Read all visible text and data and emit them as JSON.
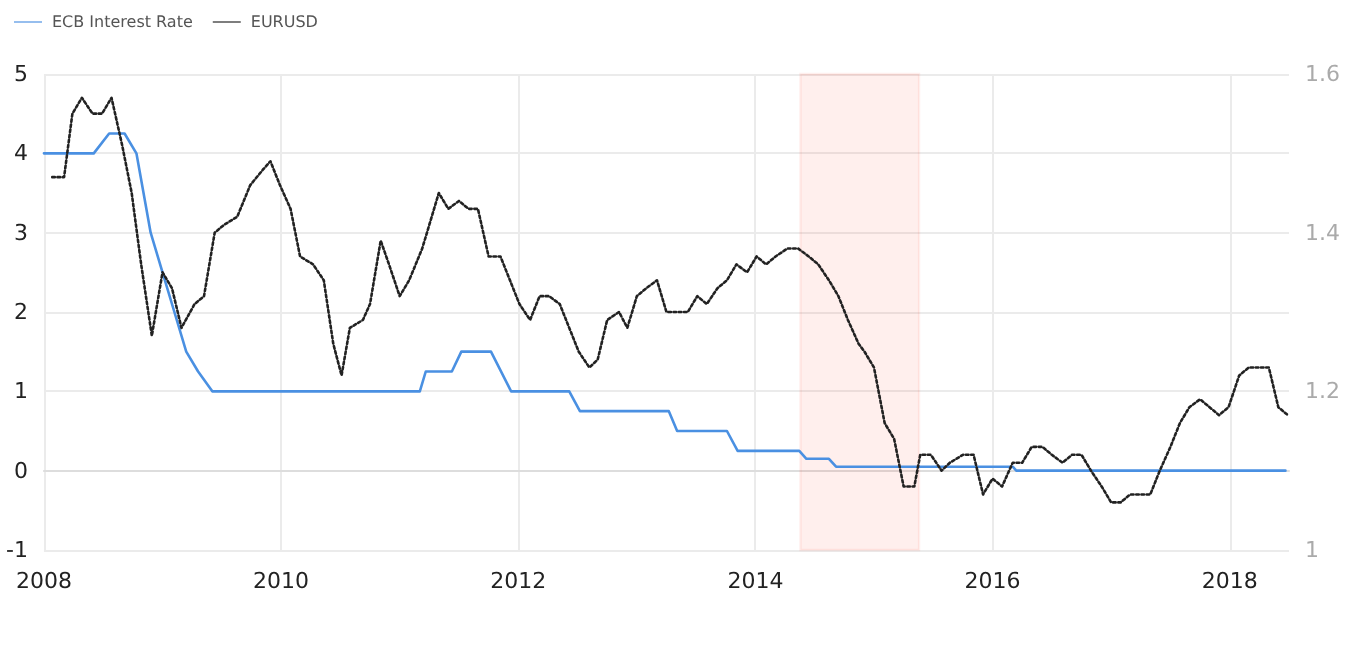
{
  "chart_data": {
    "type": "line",
    "xlim": [
      2008,
      2018.5
    ],
    "xticks": [
      2008,
      2010,
      2012,
      2014,
      2016,
      2018
    ],
    "ylim": [
      -1,
      5
    ],
    "yticks": [
      -1,
      0,
      1,
      2,
      3,
      4,
      5
    ],
    "y2lim": [
      1,
      1.6
    ],
    "y2ticks": [
      1,
      1.2,
      1.4,
      1.6
    ],
    "grid": true,
    "legend": "top left",
    "marker": "none",
    "bands": [
      {
        "axis": "x",
        "from": 2014.38,
        "to": 2015.38,
        "color": "#ff2200"
      }
    ],
    "series": [
      {
        "name": "ECB Interest Rate",
        "color": "#4a90e2",
        "line_style": "solid",
        "x": [
          2008,
          2008.42,
          2008.55,
          2008.68,
          2008.78,
          2008.9,
          2009.0,
          2009.1,
          2009.2,
          2009.3,
          2009.42,
          2011.17,
          2011.22,
          2011.44,
          2011.52,
          2011.77,
          2011.94,
          2012.43,
          2012.52,
          2013.27,
          2013.34,
          2013.76,
          2013.85,
          2014.37,
          2014.43,
          2014.62,
          2014.68,
          2016.17,
          2016.2,
          2018.47
        ],
        "values": [
          4,
          4,
          4.25,
          4.25,
          4,
          3,
          2.5,
          2,
          1.5,
          1.25,
          1,
          1,
          1.25,
          1.25,
          1.5,
          1.5,
          1,
          1,
          0.75,
          0.75,
          0.5,
          0.5,
          0.25,
          0.25,
          0.15,
          0.15,
          0.05,
          0.05,
          0,
          0
        ]
      },
      {
        "name": "EURUSD",
        "color": "#222222",
        "line_style": "dotted",
        "axis": "y2",
        "x": [
          2008.07,
          2008.17,
          2008.24,
          2008.32,
          2008.41,
          2008.49,
          2008.57,
          2008.66,
          2008.74,
          2008.82,
          2008.91,
          2009.0,
          2009.08,
          2009.16,
          2009.27,
          2009.35,
          2009.44,
          2009.52,
          2009.63,
          2009.74,
          2009.85,
          2009.91,
          2009.99,
          2010.08,
          2010.16,
          2010.27,
          2010.36,
          2010.44,
          2010.51,
          2010.58,
          2010.69,
          2010.75,
          2010.84,
          2010.91,
          2011.0,
          2011.08,
          2011.19,
          2011.25,
          2011.33,
          2011.41,
          2011.5,
          2011.58,
          2011.66,
          2011.75,
          2011.85,
          2011.93,
          2012.01,
          2012.1,
          2012.18,
          2012.26,
          2012.35,
          2012.43,
          2012.51,
          2012.6,
          2012.67,
          2012.75,
          2012.85,
          2012.92,
          2013.0,
          2013.08,
          2013.17,
          2013.25,
          2013.34,
          2013.43,
          2013.51,
          2013.59,
          2013.68,
          2013.76,
          2013.84,
          2013.93,
          2014.01,
          2014.09,
          2014.17,
          2014.27,
          2014.36,
          2014.45,
          2014.53,
          2014.62,
          2014.7,
          2014.78,
          2014.87,
          2014.92,
          2015.0,
          2015.09,
          2015.17,
          2015.25,
          2015.34,
          2015.39,
          2015.48,
          2015.57,
          2015.64,
          2015.75,
          2015.84,
          2015.92,
          2016.0,
          2016.08,
          2016.17,
          2016.25,
          2016.33,
          2016.42,
          2016.5,
          2016.59,
          2016.67,
          2016.75,
          2016.83,
          2016.92,
          2017.0,
          2017.08,
          2017.16,
          2017.25,
          2017.33,
          2017.41,
          2017.5,
          2017.58,
          2017.66,
          2017.75,
          2017.83,
          2017.91,
          2017.99,
          2018.08,
          2018.16,
          2018.24,
          2018.33,
          2018.41,
          2018.49
        ],
        "values": [
          1.47,
          1.47,
          1.55,
          1.57,
          1.55,
          1.55,
          1.57,
          1.51,
          1.45,
          1.36,
          1.27,
          1.35,
          1.33,
          1.28,
          1.31,
          1.32,
          1.4,
          1.41,
          1.42,
          1.46,
          1.48,
          1.49,
          1.46,
          1.43,
          1.37,
          1.36,
          1.34,
          1.26,
          1.22,
          1.28,
          1.29,
          1.31,
          1.39,
          1.36,
          1.32,
          1.34,
          1.38,
          1.41,
          1.45,
          1.43,
          1.44,
          1.43,
          1.43,
          1.37,
          1.37,
          1.34,
          1.31,
          1.29,
          1.32,
          1.32,
          1.31,
          1.28,
          1.25,
          1.23,
          1.24,
          1.29,
          1.3,
          1.28,
          1.32,
          1.33,
          1.34,
          1.3,
          1.3,
          1.3,
          1.32,
          1.31,
          1.33,
          1.34,
          1.36,
          1.35,
          1.37,
          1.36,
          1.37,
          1.38,
          1.38,
          1.37,
          1.36,
          1.34,
          1.32,
          1.29,
          1.26,
          1.25,
          1.23,
          1.16,
          1.14,
          1.08,
          1.08,
          1.12,
          1.12,
          1.1,
          1.11,
          1.12,
          1.12,
          1.07,
          1.09,
          1.08,
          1.11,
          1.11,
          1.13,
          1.13,
          1.12,
          1.11,
          1.12,
          1.12,
          1.1,
          1.08,
          1.06,
          1.06,
          1.07,
          1.07,
          1.07,
          1.1,
          1.13,
          1.16,
          1.18,
          1.19,
          1.18,
          1.17,
          1.18,
          1.22,
          1.23,
          1.23,
          1.23,
          1.18,
          1.17
        ]
      }
    ]
  }
}
